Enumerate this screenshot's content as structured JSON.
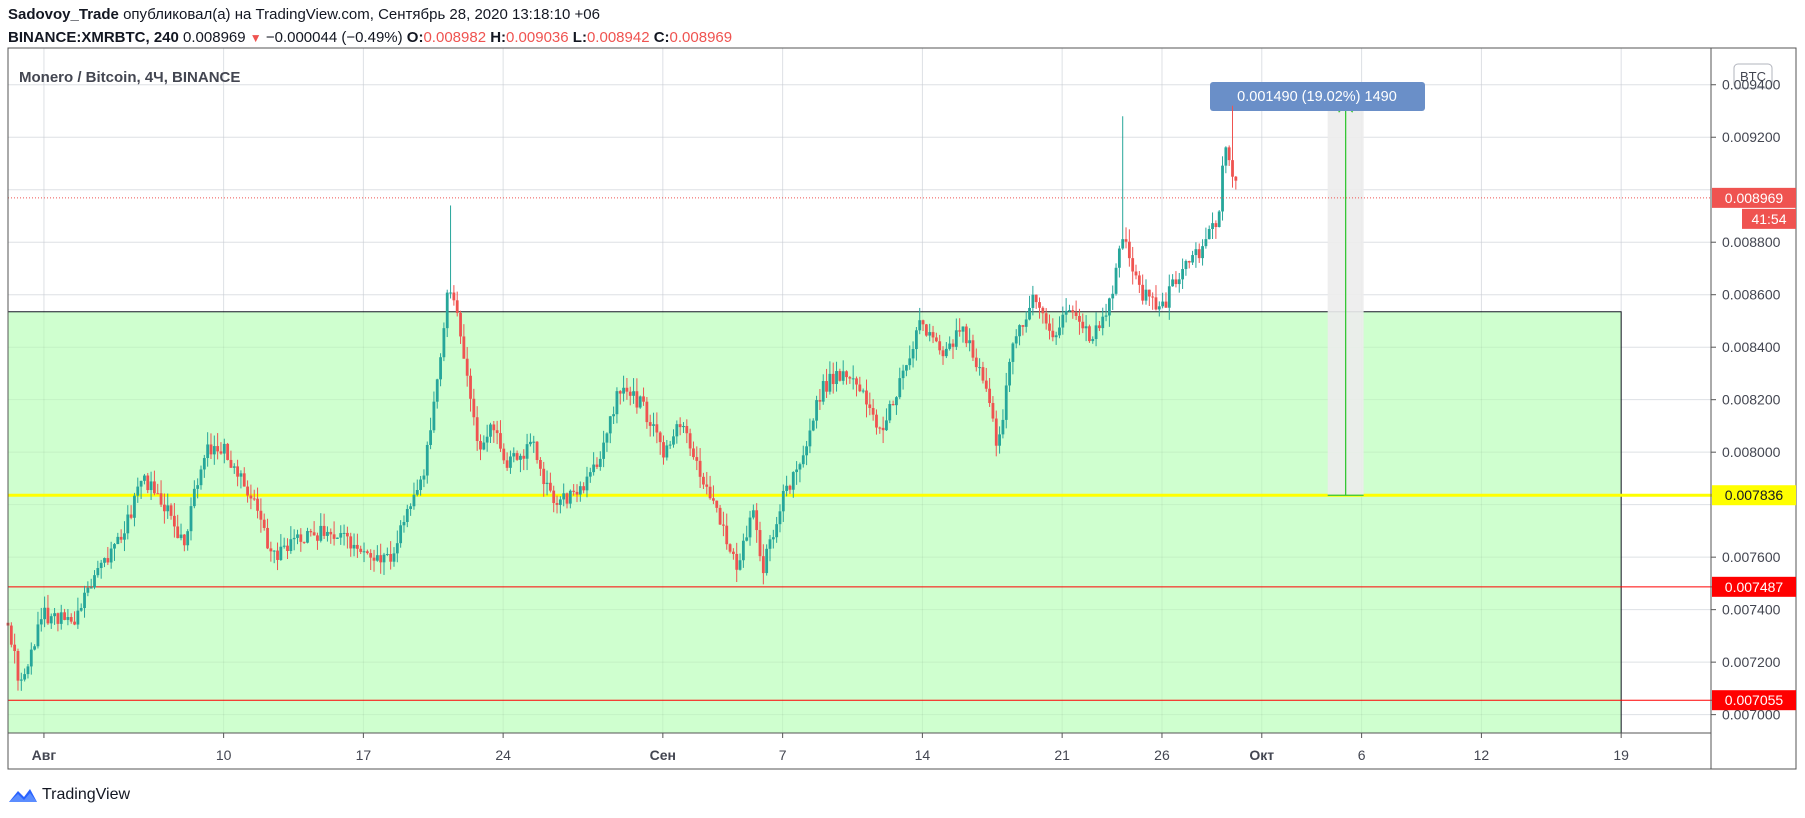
{
  "header": {
    "author": "Sadovoy_Trade",
    "published_text": "опубликовал(а) на TradingView.com, Сентябрь 28, 2020 13:18:10 +06",
    "symbol": "BINANCE:XMRBTC, 240",
    "last": "0.008969",
    "change": "−0.000044 (−0.49%)",
    "o_label": "O:",
    "o_value": "0.008982",
    "h_label": "H:",
    "h_value": "0.009036",
    "l_label": "L:",
    "l_value": "0.008942",
    "c_label": "C:",
    "c_value": "0.008969"
  },
  "footer": {
    "brand": "TradingView",
    "icon": "tradingview-logo-icon"
  },
  "colors": {
    "up": "#26a69a",
    "down": "#ef5350",
    "zone": "#ccffcc",
    "support": "#ffff00",
    "level": "#ff0000",
    "measure_label": "#6a8fc8"
  },
  "chart_data": {
    "type": "candlestick",
    "title": "Monero / Bitcoin, 4Ч, BINANCE",
    "currency": "BTC",
    "ylim": [
      0.00693,
      0.00954
    ],
    "y_ticks": [
      "0.009400",
      "0.009200",
      "0.008800",
      "0.008600",
      "0.008400",
      "0.008200",
      "0.008000",
      "0.007600",
      "0.007400",
      "0.007200",
      "0.007000"
    ],
    "x_ticks": [
      {
        "label": "Авг",
        "day": 0
      },
      {
        "label": "10",
        "day": 9
      },
      {
        "label": "17",
        "day": 16
      },
      {
        "label": "24",
        "day": 23
      },
      {
        "label": "Сен",
        "day": 31
      },
      {
        "label": "7",
        "day": 37
      },
      {
        "label": "14",
        "day": 44
      },
      {
        "label": "21",
        "day": 51
      },
      {
        "label": "26",
        "day": 56
      },
      {
        "label": "Окт",
        "day": 61
      },
      {
        "label": "6",
        "day": 66
      },
      {
        "label": "12",
        "day": 72
      },
      {
        "label": "19",
        "day": 79
      }
    ],
    "x_range_days": [
      -1.8,
      83.5
    ],
    "price_path": [
      [
        -1.8,
        0.00735
      ],
      [
        -1.2,
        0.00712
      ],
      [
        0,
        0.00738
      ],
      [
        1.5,
        0.00735
      ],
      [
        2.5,
        0.00752
      ],
      [
        4,
        0.0077
      ],
      [
        5,
        0.0079
      ],
      [
        6,
        0.0078
      ],
      [
        7,
        0.00765
      ],
      [
        8,
        0.008
      ],
      [
        9,
        0.00802
      ],
      [
        10.5,
        0.0078
      ],
      [
        11.5,
        0.0076
      ],
      [
        13,
        0.00768
      ],
      [
        14.5,
        0.0077
      ],
      [
        16,
        0.0076
      ],
      [
        17.5,
        0.00758
      ],
      [
        18,
        0.00775
      ],
      [
        19,
        0.0079
      ],
      [
        19.8,
        0.0083
      ],
      [
        20.3,
        0.00865
      ],
      [
        21,
        0.0084
      ],
      [
        21.8,
        0.008
      ],
      [
        22.5,
        0.00812
      ],
      [
        23,
        0.00795
      ],
      [
        24.5,
        0.00802
      ],
      [
        25.5,
        0.0078
      ],
      [
        27,
        0.00785
      ],
      [
        28,
        0.008
      ],
      [
        28.8,
        0.00825
      ],
      [
        30,
        0.00818
      ],
      [
        31,
        0.008
      ],
      [
        32,
        0.00812
      ],
      [
        33,
        0.0079
      ],
      [
        34,
        0.0077
      ],
      [
        34.8,
        0.00755
      ],
      [
        35.5,
        0.0078
      ],
      [
        36,
        0.00755
      ],
      [
        36.8,
        0.00778
      ],
      [
        38,
        0.008
      ],
      [
        39,
        0.00825
      ],
      [
        40,
        0.0083
      ],
      [
        41,
        0.00822
      ],
      [
        42,
        0.00808
      ],
      [
        43,
        0.0083
      ],
      [
        44,
        0.0085
      ],
      [
        45,
        0.00835
      ],
      [
        46,
        0.00848
      ],
      [
        47,
        0.0083
      ],
      [
        47.8,
        0.008
      ],
      [
        48.5,
        0.0084
      ],
      [
        49.5,
        0.00858
      ],
      [
        50.5,
        0.00845
      ],
      [
        51.5,
        0.00855
      ],
      [
        52.5,
        0.00842
      ],
      [
        53.5,
        0.0086
      ],
      [
        54,
        0.00882
      ],
      [
        55,
        0.0086
      ],
      [
        56,
        0.00855
      ],
      [
        57,
        0.0087
      ],
      [
        58,
        0.00878
      ],
      [
        58.8,
        0.0089
      ],
      [
        59.2,
        0.00918
      ],
      [
        59.8,
        0.00897
      ]
    ],
    "zone": {
      "x_start_day": -1.8,
      "x_end_day": 79,
      "y_top": 0.008535,
      "y_bottom": 0.00693
    },
    "levels": [
      {
        "value": 0.007836,
        "label": "0.007836",
        "color": "#ffff00",
        "text_color": "#131722"
      },
      {
        "value": 0.007487,
        "label": "0.007487",
        "color": "#ff0000",
        "text_color": "#ffffff"
      },
      {
        "value": 0.007055,
        "label": "0.007055",
        "color": "#ff0000",
        "text_color": "#ffffff"
      }
    ],
    "current_price": {
      "value": 0.008969,
      "label": "0.008969",
      "countdown": "41:54",
      "color": "#ef5350"
    },
    "measure": {
      "x_start_day": 64.3,
      "x_end_day": 66.1,
      "y_from": 0.007836,
      "y_to": 0.009326,
      "label": "0.001490 (19.02%) 1490"
    },
    "wick_highs": [
      {
        "day": 20.3,
        "value": 0.00894
      },
      {
        "day": 54.0,
        "value": 0.00928
      },
      {
        "day": 59.5,
        "value": 0.00932
      }
    ]
  }
}
